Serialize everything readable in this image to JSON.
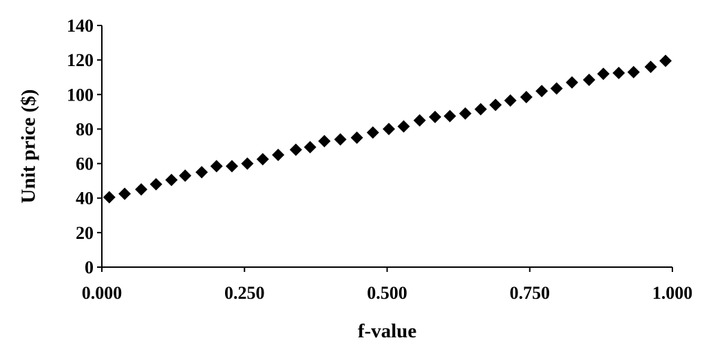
{
  "chart_data": {
    "type": "scatter",
    "title": "",
    "xlabel": "f-value",
    "ylabel": "Unit price ($)",
    "xlim": [
      0,
      1
    ],
    "ylim": [
      0,
      140
    ],
    "xticks": [
      0,
      0.25,
      0.5,
      0.75,
      1
    ],
    "xtick_labels": [
      "0.000",
      "0.250",
      "0.500",
      "0.750",
      "1.000"
    ],
    "yticks": [
      0,
      20,
      40,
      60,
      80,
      100,
      120,
      140
    ],
    "ytick_labels": [
      "0",
      "20",
      "40",
      "60",
      "80",
      "100",
      "120",
      "140"
    ],
    "grid": false,
    "legend": "none",
    "marker": "diamond",
    "marker_color": "#000000",
    "series": [
      {
        "x": [
          0.013,
          0.04,
          0.069,
          0.095,
          0.122,
          0.146,
          0.175,
          0.201,
          0.228,
          0.255,
          0.282,
          0.309,
          0.34,
          0.365,
          0.39,
          0.418,
          0.447,
          0.475,
          0.503,
          0.529,
          0.557,
          0.584,
          0.61,
          0.637,
          0.664,
          0.69,
          0.716,
          0.744,
          0.771,
          0.797,
          0.824,
          0.854,
          0.879,
          0.906,
          0.932,
          0.962,
          0.988
        ],
        "y": [
          40.5,
          42.5,
          45.0,
          48.0,
          50.5,
          53.0,
          55.0,
          58.5,
          58.5,
          60.0,
          62.5,
          65.0,
          68.0,
          69.5,
          73.0,
          74.0,
          75.0,
          78.0,
          80.0,
          81.5,
          85.0,
          87.0,
          87.5,
          89.0,
          91.5,
          94.0,
          96.5,
          98.5,
          102.0,
          103.5,
          107.0,
          108.5,
          112.0,
          112.5,
          113.0,
          116.0,
          119.5
        ]
      }
    ]
  }
}
